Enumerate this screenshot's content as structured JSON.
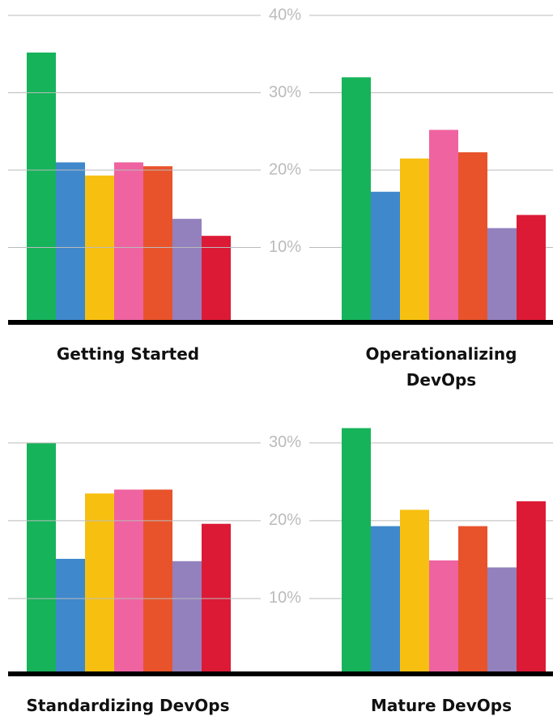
{
  "chart_data": [
    {
      "type": "bar",
      "title": "Getting Started",
      "values": [
        35.2,
        21,
        19.3,
        21,
        20.5,
        13.7,
        11.5
      ],
      "colors": [
        "#16b35a",
        "#3f88cc",
        "#f7c010",
        "#ef63a0",
        "#e8532b",
        "#9381bd",
        "#dc1a35"
      ],
      "ylim": [
        0,
        40
      ]
    },
    {
      "type": "bar",
      "title": "Operationalizing DevOps",
      "values": [
        32,
        17.2,
        21.5,
        25.2,
        22.3,
        12.5,
        14.2
      ],
      "colors": [
        "#16b35a",
        "#3f88cc",
        "#f7c010",
        "#ef63a0",
        "#e8532b",
        "#9381bd",
        "#dc1a35"
      ],
      "ylim": [
        0,
        40
      ],
      "yticks": [
        {
          "value": 10,
          "label": "10%"
        },
        {
          "value": 20,
          "label": "20%"
        },
        {
          "value": 30,
          "label": "30%"
        },
        {
          "value": 40,
          "label": "40%"
        }
      ],
      "grid": true
    },
    {
      "type": "bar",
      "title": "Standardizing DevOps",
      "values": [
        30,
        15.1,
        23.5,
        24,
        24,
        14.8,
        19.6
      ],
      "colors": [
        "#16b35a",
        "#3f88cc",
        "#f7c010",
        "#ef63a0",
        "#e8532b",
        "#9381bd",
        "#dc1a35"
      ],
      "ylim": [
        0,
        33
      ]
    },
    {
      "type": "bar",
      "title": "Mature DevOps",
      "values": [
        31.9,
        19.3,
        21.4,
        14.9,
        19.3,
        14,
        22.5
      ],
      "colors": [
        "#16b35a",
        "#3f88cc",
        "#f7c010",
        "#ef63a0",
        "#e8532b",
        "#9381bd",
        "#dc1a35"
      ],
      "ylim": [
        0,
        33
      ],
      "yticks": [
        {
          "value": 10,
          "label": "10%"
        },
        {
          "value": 20,
          "label": "20%"
        },
        {
          "value": 30,
          "label": "30%"
        }
      ],
      "grid": true
    }
  ]
}
